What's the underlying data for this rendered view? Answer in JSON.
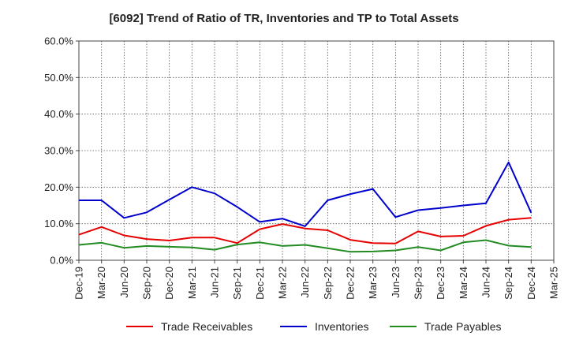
{
  "chart_data": {
    "type": "line",
    "title": "[6092]  Trend of Ratio of TR, Inventories and TP to Total Assets",
    "xlabel": "",
    "ylabel": "",
    "ylim": [
      0,
      60
    ],
    "yticks": [
      "0.0%",
      "10.0%",
      "20.0%",
      "30.0%",
      "40.0%",
      "50.0%",
      "60.0%"
    ],
    "xticks": [
      "Dec-19",
      "Mar-20",
      "Jun-20",
      "Sep-20",
      "Dec-20",
      "Mar-21",
      "Jun-21",
      "Sep-21",
      "Dec-21",
      "Mar-22",
      "Jun-22",
      "Sep-22",
      "Dec-22",
      "Mar-23",
      "Jun-23",
      "Sep-23",
      "Dec-23",
      "Mar-24",
      "Jun-24",
      "Sep-24",
      "Dec-24",
      "Mar-25"
    ],
    "x": [
      "Dec-19",
      "Mar-20",
      "Jun-20",
      "Sep-20",
      "Dec-20",
      "Mar-21",
      "Jun-21",
      "Sep-21",
      "Dec-21",
      "Mar-22",
      "Jun-22",
      "Sep-22",
      "Dec-22",
      "Mar-23",
      "Jun-23",
      "Sep-23",
      "Dec-23",
      "Mar-24",
      "Jun-24",
      "Sep-24",
      "Dec-24"
    ],
    "grid": true,
    "legend_position": "bottom",
    "series": [
      {
        "name": "Trade Receivables",
        "color": "#e60000",
        "values": [
          7.0,
          9.1,
          6.8,
          5.8,
          5.4,
          6.2,
          6.2,
          4.7,
          8.5,
          9.9,
          8.7,
          8.2,
          5.6,
          4.7,
          4.6,
          7.9,
          6.5,
          6.7,
          9.4,
          11.1,
          11.6
        ]
      },
      {
        "name": "Inventories",
        "color": "#0000cc",
        "values": [
          16.4,
          16.4,
          11.6,
          13.1,
          16.6,
          20.0,
          18.3,
          14.6,
          10.5,
          11.4,
          9.3,
          16.4,
          18.1,
          19.5,
          11.8,
          13.7,
          14.3,
          15.0,
          15.6,
          26.8,
          13.0
        ]
      },
      {
        "name": "Trade Payables",
        "color": "#228b22",
        "values": [
          4.2,
          4.8,
          3.4,
          3.9,
          3.7,
          3.5,
          2.9,
          4.3,
          4.9,
          3.9,
          4.2,
          3.3,
          2.3,
          2.4,
          2.7,
          3.6,
          2.7,
          4.9,
          5.5,
          4.0,
          3.6
        ]
      }
    ]
  }
}
